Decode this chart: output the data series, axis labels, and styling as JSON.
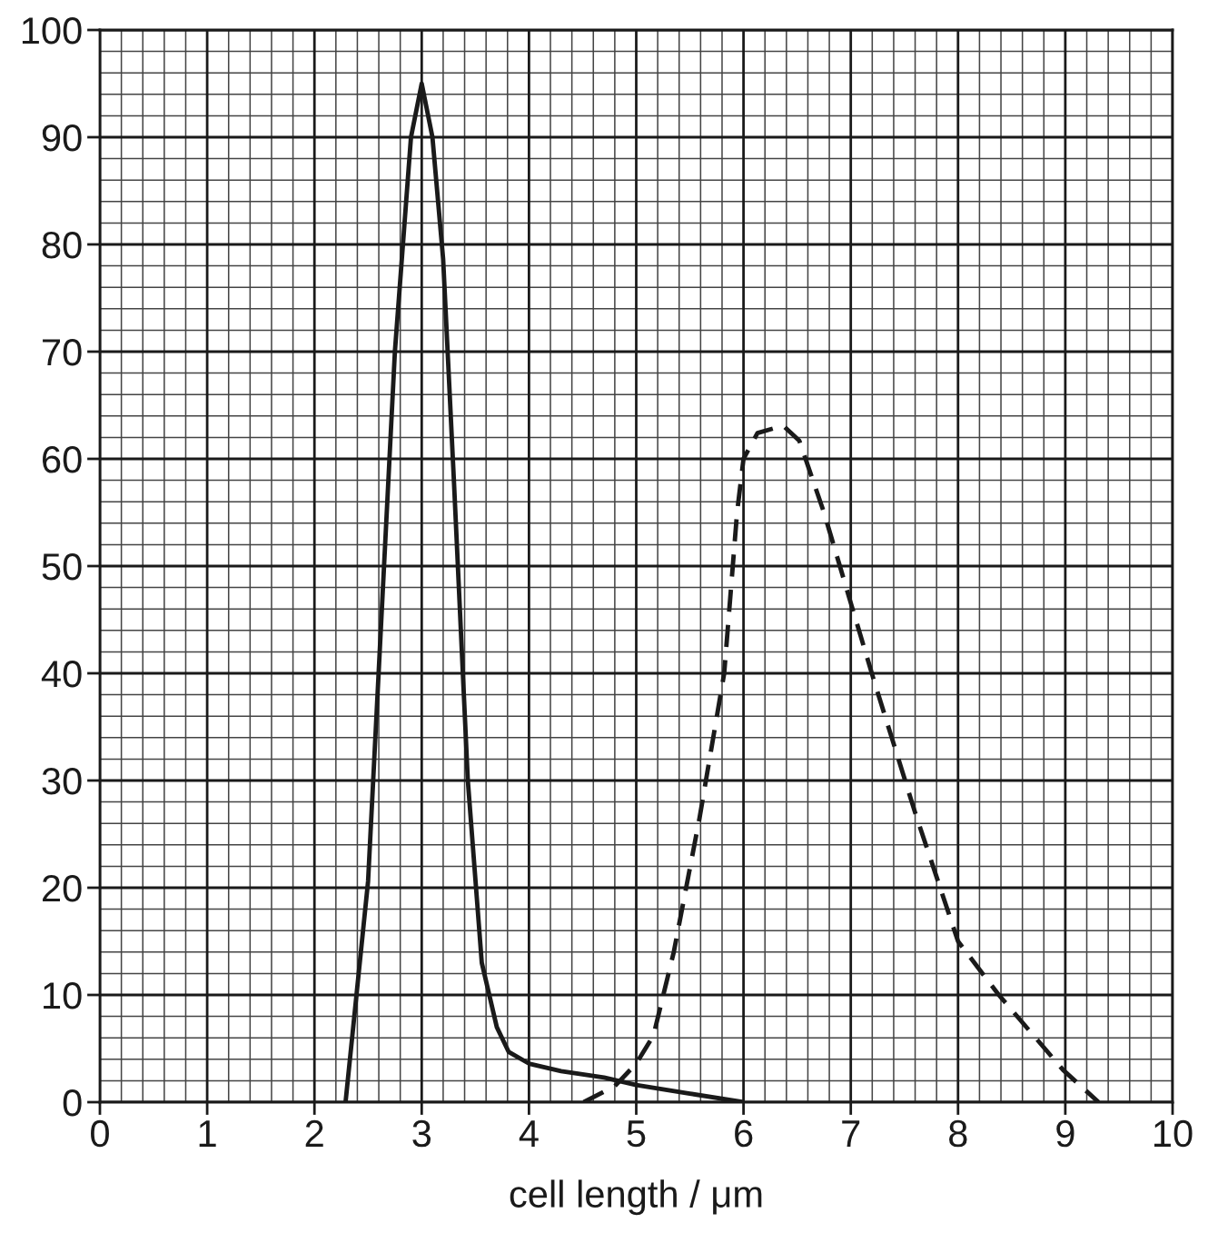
{
  "chart_data": {
    "type": "line",
    "xlabel": "cell length / μm",
    "xlim": [
      0,
      10
    ],
    "ylim": [
      0,
      100
    ],
    "xticks": [
      0,
      1,
      2,
      3,
      4,
      5,
      6,
      7,
      8,
      9,
      10
    ],
    "yticks": [
      0,
      10,
      20,
      30,
      40,
      50,
      60,
      70,
      80,
      90,
      100
    ],
    "grid": true,
    "series": [
      {
        "color": "#1a1a1a",
        "line_style": "solid",
        "x": [
          2.29,
          2.5,
          2.75,
          2.9,
          3.0,
          3.1,
          3.2,
          3.3,
          3.43,
          3.56,
          3.7,
          3.81,
          4.0,
          4.3,
          4.7,
          5.0,
          5.5,
          6.0
        ],
        "values": [
          0,
          20.6,
          70,
          90,
          95,
          90,
          78.6,
          58,
          30,
          13,
          7,
          4.7,
          3.6,
          2.9,
          2.3,
          1.6,
          0.8,
          0
        ]
      },
      {
        "color": "#1a1a1a",
        "line_style": "dashed",
        "x": [
          4.51,
          4.8,
          5.0,
          5.16,
          5.35,
          5.59,
          5.82,
          5.94,
          6.0,
          6.13,
          6.37,
          6.52,
          6.75,
          6.99,
          7.22,
          7.6,
          8.0,
          8.38,
          8.98,
          9.31
        ],
        "values": [
          0,
          1.5,
          3.6,
          6.2,
          14,
          26.5,
          40,
          55,
          60,
          62.4,
          63.1,
          61.7,
          55,
          46.9,
          39.2,
          27,
          15,
          10,
          3,
          0
        ]
      }
    ]
  }
}
